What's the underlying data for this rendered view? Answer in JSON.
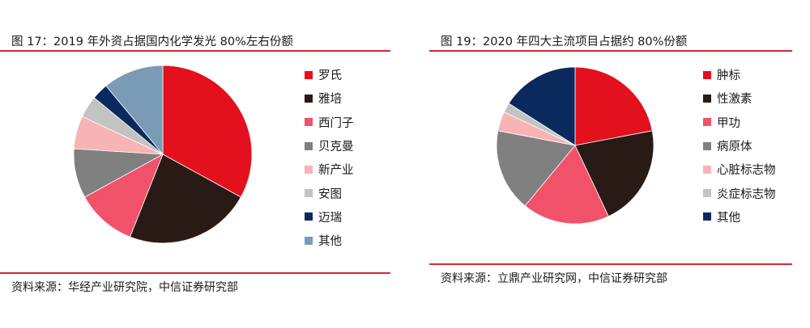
{
  "charts": [
    {
      "title": "图 17：2019 年外资占据国内化学发光 80%左右份额",
      "source": "资料来源：华经产业研究院，中信证券研究部"
    },
    {
      "title": "图 19：2020 年四大主流项目占据约 80%份额",
      "source": "资料来源：立鼎产业研究网，中信证券研究部"
    }
  ],
  "chart_data": [
    {
      "type": "pie",
      "title": "图 17：2019 年外资占据国内化学发光 80%左右份额",
      "legend_position": "right",
      "start_angle_deg": 0,
      "direction": "clockwise",
      "slices": [
        {
          "label": "罗氏",
          "value": 33,
          "color": "#e3101d"
        },
        {
          "label": "雅培",
          "value": 23,
          "color": "#2a1a16"
        },
        {
          "label": "西门子",
          "value": 11,
          "color": "#f1526a"
        },
        {
          "label": "贝克曼",
          "value": 9,
          "color": "#808080"
        },
        {
          "label": "新产业",
          "value": 6,
          "color": "#f8b3b5"
        },
        {
          "label": "安图",
          "value": 4,
          "color": "#c3c3c3"
        },
        {
          "label": "迈瑞",
          "value": 3,
          "color": "#0a2a5e"
        },
        {
          "label": "其他",
          "value": 11,
          "color": "#7a9bb5"
        }
      ]
    },
    {
      "type": "pie",
      "title": "图 19：2020 年四大主流项目占据约 80%份额",
      "legend_position": "right",
      "start_angle_deg": 0,
      "direction": "clockwise",
      "slices": [
        {
          "label": "肿标",
          "value": 22,
          "color": "#e3101d"
        },
        {
          "label": "性激素",
          "value": 21,
          "color": "#2a1a16"
        },
        {
          "label": "甲功",
          "value": 18,
          "color": "#f1526a"
        },
        {
          "label": "病原体",
          "value": 17,
          "color": "#808080"
        },
        {
          "label": "心脏标志物",
          "value": 4,
          "color": "#f8b3b5"
        },
        {
          "label": "炎症标志物",
          "value": 2,
          "color": "#c3c3c3"
        },
        {
          "label": "其他",
          "value": 16,
          "color": "#0a2a5e"
        }
      ]
    }
  ]
}
